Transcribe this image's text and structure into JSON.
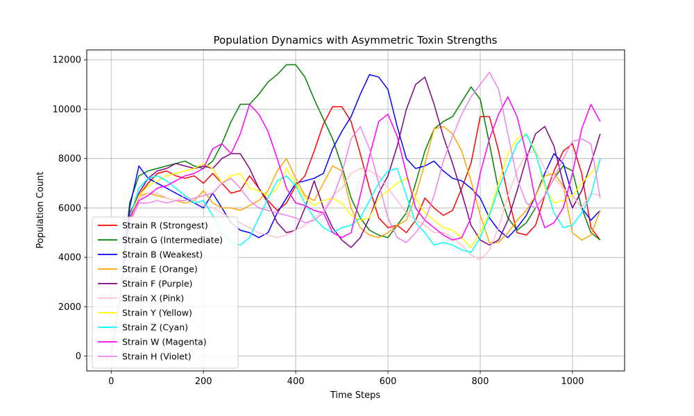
{
  "chart_data": {
    "type": "line",
    "title": "Population Dynamics with Asymmetric Toxin Strengths",
    "xlabel": "Time Steps",
    "ylabel": "Population Count",
    "xlim": [
      -53,
      1113
    ],
    "ylim": [
      -600,
      12400
    ],
    "xticks": [
      0,
      200,
      400,
      600,
      800,
      1000
    ],
    "yticks": [
      0,
      2000,
      4000,
      6000,
      8000,
      10000,
      12000
    ],
    "grid": true,
    "legend_position": "lower-left",
    "series": [
      {
        "name": "Strain R (Strongest)",
        "color": "#ff0000",
        "x": [
          0,
          20,
          40,
          60,
          80,
          100,
          120,
          140,
          160,
          180,
          200,
          220,
          240,
          260,
          280,
          300,
          320,
          340,
          360,
          380,
          400,
          420,
          440,
          460,
          480,
          500,
          520,
          540,
          560,
          580,
          600,
          620,
          640,
          660,
          680,
          700,
          720,
          740,
          760,
          780,
          800,
          820,
          840,
          860,
          880,
          900,
          920,
          940,
          960,
          980,
          1000,
          1020,
          1040,
          1060
        ],
        "y": [
          0,
          2500,
          5800,
          6500,
          7000,
          7400,
          7500,
          7300,
          7200,
          7300,
          7000,
          7400,
          7000,
          6600,
          6700,
          7300,
          6800,
          6300,
          5900,
          6200,
          6900,
          7300,
          8300,
          9400,
          10100,
          10100,
          9500,
          8200,
          6800,
          5600,
          5200,
          5300,
          5000,
          5500,
          6400,
          6000,
          5700,
          5900,
          6800,
          7800,
          9700,
          9700,
          8300,
          6500,
          5000,
          4900,
          5300,
          6500,
          7500,
          8300,
          8600,
          7400,
          5200,
          4700
        ]
      },
      {
        "name": "Strain G (Intermediate)",
        "color": "#008000",
        "x": [
          0,
          20,
          40,
          60,
          80,
          100,
          120,
          140,
          160,
          180,
          200,
          220,
          240,
          260,
          280,
          300,
          320,
          340,
          360,
          380,
          400,
          420,
          440,
          460,
          480,
          500,
          520,
          540,
          560,
          580,
          600,
          620,
          640,
          660,
          680,
          700,
          720,
          740,
          760,
          780,
          800,
          820,
          840,
          860,
          880,
          900,
          920,
          940,
          960,
          980,
          1000,
          1020,
          1040,
          1060
        ],
        "y": [
          0,
          2500,
          6200,
          7300,
          7500,
          7600,
          7700,
          7800,
          7900,
          7700,
          7600,
          7900,
          8600,
          9500,
          10200,
          10200,
          10600,
          11100,
          11400,
          11800,
          11800,
          11300,
          10400,
          9600,
          8800,
          7700,
          6400,
          5600,
          5100,
          4900,
          4800,
          5300,
          5800,
          7000,
          8300,
          9200,
          9500,
          9700,
          10300,
          10900,
          10400,
          8600,
          6700,
          5600,
          5100,
          5400,
          6000,
          6500,
          7200,
          7700,
          7500,
          6000,
          5000,
          4700
        ]
      },
      {
        "name": "Strain B (Weakest)",
        "color": "#0000ff",
        "x": [
          0,
          20,
          40,
          60,
          80,
          100,
          120,
          140,
          160,
          180,
          200,
          220,
          240,
          260,
          280,
          300,
          320,
          340,
          360,
          380,
          400,
          420,
          440,
          460,
          480,
          500,
          520,
          540,
          560,
          580,
          600,
          620,
          640,
          660,
          680,
          700,
          720,
          740,
          760,
          780,
          800,
          820,
          840,
          860,
          880,
          900,
          920,
          940,
          960,
          980,
          1000,
          1020,
          1040,
          1060
        ],
        "y": [
          0,
          2500,
          6000,
          7700,
          7200,
          7000,
          6800,
          6600,
          6400,
          6200,
          6000,
          6600,
          6000,
          5400,
          5100,
          5000,
          4800,
          5000,
          5800,
          6400,
          7000,
          7100,
          7200,
          7400,
          8400,
          9100,
          9700,
          10600,
          11400,
          11300,
          10800,
          9300,
          8000,
          7600,
          7700,
          7900,
          7500,
          7200,
          7100,
          6800,
          6400,
          5600,
          5100,
          4800,
          5200,
          5700,
          6500,
          7400,
          8200,
          7800,
          6500,
          6000,
          5500,
          5900
        ]
      },
      {
        "name": "Strain E (Orange)",
        "color": "#ffa500",
        "x": [
          0,
          20,
          40,
          60,
          80,
          100,
          120,
          140,
          160,
          180,
          200,
          220,
          240,
          260,
          280,
          300,
          320,
          340,
          360,
          380,
          400,
          420,
          440,
          460,
          480,
          500,
          520,
          540,
          560,
          580,
          600,
          620,
          640,
          660,
          680,
          700,
          720,
          740,
          760,
          780,
          800,
          820,
          840,
          860,
          880,
          900,
          920,
          940,
          960,
          980,
          1000,
          1020,
          1040,
          1060
        ],
        "y": [
          0,
          2500,
          5400,
          6500,
          6600,
          6500,
          6400,
          6300,
          6200,
          6300,
          6700,
          6200,
          6000,
          6000,
          5900,
          6100,
          6300,
          6700,
          7500,
          8000,
          7200,
          6500,
          6300,
          7000,
          7700,
          7500,
          6000,
          5200,
          4900,
          4800,
          5000,
          5300,
          5500,
          6500,
          7800,
          9200,
          9300,
          9000,
          8300,
          7100,
          5700,
          4600,
          4600,
          5000,
          5500,
          5900,
          6500,
          7300,
          7400,
          6900,
          5000,
          4700,
          4900,
          5900
        ]
      },
      {
        "name": "Strain F (Purple)",
        "color": "#800080",
        "x": [
          0,
          20,
          40,
          60,
          80,
          100,
          120,
          140,
          160,
          180,
          200,
          220,
          240,
          260,
          280,
          300,
          320,
          340,
          360,
          380,
          400,
          420,
          440,
          460,
          480,
          500,
          520,
          540,
          560,
          580,
          600,
          620,
          640,
          660,
          680,
          700,
          720,
          740,
          760,
          780,
          800,
          820,
          840,
          860,
          880,
          900,
          920,
          940,
          960,
          980,
          1000,
          1020,
          1040,
          1060
        ],
        "y": [
          0,
          2500,
          5600,
          6600,
          7200,
          7500,
          7600,
          7800,
          7700,
          7600,
          7700,
          7600,
          8000,
          8200,
          8200,
          7600,
          6800,
          6200,
          5400,
          5000,
          5100,
          6000,
          7100,
          6000,
          5200,
          4700,
          4400,
          4800,
          5600,
          6600,
          7300,
          8500,
          10000,
          11000,
          11300,
          10200,
          8900,
          7800,
          6600,
          5300,
          4700,
          4500,
          4700,
          5500,
          6700,
          8000,
          9000,
          9300,
          8500,
          7000,
          6000,
          6700,
          7800,
          9000
        ]
      },
      {
        "name": "Strain X (Pink)",
        "color": "#ffc0cb",
        "x": [
          0,
          20,
          40,
          60,
          80,
          100,
          120,
          140,
          160,
          180,
          200,
          220,
          240,
          260,
          280,
          300,
          320,
          340,
          360,
          380,
          400,
          420,
          440,
          460,
          480,
          500,
          520,
          540,
          560,
          580,
          600,
          620,
          640,
          660,
          680,
          700,
          720,
          740,
          760,
          780,
          800,
          820,
          840,
          860,
          880,
          900,
          920,
          940,
          960,
          980,
          1000,
          1020,
          1040,
          1060
        ],
        "y": [
          0,
          2500,
          5600,
          6400,
          6600,
          6600,
          6400,
          6300,
          6500,
          6300,
          6100,
          6000,
          5800,
          5600,
          5400,
          5200,
          5000,
          4900,
          4800,
          4900,
          5100,
          5300,
          5600,
          5900,
          6500,
          6800,
          7400,
          7600,
          7500,
          7300,
          6800,
          6300,
          5800,
          5500,
          5300,
          5000,
          5000,
          4800,
          4500,
          4100,
          3900,
          4300,
          5200,
          6500,
          7500,
          8200,
          8300,
          7600,
          7200,
          6800,
          6500,
          6000,
          6600,
          6500
        ]
      },
      {
        "name": "Strain Y (Yellow)",
        "color": "#ffff00",
        "x": [
          0,
          20,
          40,
          60,
          80,
          100,
          120,
          140,
          160,
          180,
          200,
          220,
          240,
          260,
          280,
          300,
          320,
          340,
          360,
          380,
          400,
          420,
          440,
          460,
          480,
          500,
          520,
          540,
          560,
          580,
          600,
          620,
          640,
          660,
          680,
          700,
          720,
          740,
          760,
          780,
          800,
          820,
          840,
          860,
          880,
          900,
          920,
          940,
          960,
          980,
          1000,
          1020,
          1040,
          1060
        ],
        "y": [
          0,
          2500,
          5600,
          6500,
          6900,
          7100,
          7300,
          7400,
          7500,
          7600,
          7800,
          7600,
          7000,
          7300,
          7400,
          6800,
          6700,
          6500,
          6800,
          7600,
          7000,
          6400,
          6100,
          6300,
          6400,
          6200,
          5700,
          5500,
          5600,
          6400,
          6700,
          7000,
          7200,
          6400,
          5800,
          5500,
          5200,
          5100,
          4800,
          4400,
          5000,
          5800,
          7000,
          8200,
          8800,
          9000,
          8300,
          6800,
          6200,
          6300,
          6500,
          7000,
          7400,
          7900
        ]
      },
      {
        "name": "Strain Z (Cyan)",
        "color": "#00ffff",
        "x": [
          0,
          20,
          40,
          60,
          80,
          100,
          120,
          140,
          160,
          180,
          200,
          220,
          240,
          260,
          280,
          300,
          320,
          340,
          360,
          380,
          400,
          420,
          440,
          460,
          480,
          500,
          520,
          540,
          560,
          580,
          600,
          620,
          640,
          660,
          680,
          700,
          720,
          740,
          760,
          780,
          800,
          820,
          840,
          860,
          880,
          900,
          920,
          940,
          960,
          980,
          1000,
          1020,
          1040,
          1060
        ],
        "y": [
          0,
          2500,
          5600,
          6800,
          7200,
          7300,
          7100,
          6800,
          6500,
          6200,
          6300,
          5700,
          5000,
          4600,
          4500,
          4800,
          5600,
          6400,
          7100,
          7300,
          6900,
          6200,
          5600,
          5200,
          5000,
          5200,
          5300,
          5600,
          6300,
          7000,
          7500,
          7600,
          6500,
          5400,
          5000,
          4500,
          4600,
          4500,
          4300,
          4200,
          4800,
          5700,
          6800,
          7700,
          8600,
          9000,
          8200,
          7000,
          5800,
          5200,
          5300,
          5800,
          6500,
          8000
        ]
      },
      {
        "name": "Strain W (Magenta)",
        "color": "#ff00ff",
        "x": [
          0,
          20,
          40,
          60,
          80,
          100,
          120,
          140,
          160,
          180,
          200,
          220,
          240,
          260,
          280,
          300,
          320,
          340,
          360,
          380,
          400,
          420,
          440,
          460,
          480,
          500,
          520,
          540,
          560,
          580,
          600,
          620,
          640,
          660,
          680,
          700,
          720,
          740,
          760,
          780,
          800,
          820,
          840,
          860,
          880,
          900,
          920,
          940,
          960,
          980,
          1000,
          1020,
          1040,
          1060
        ],
        "y": [
          0,
          2500,
          5600,
          6300,
          6500,
          6800,
          6900,
          7100,
          7300,
          7400,
          7600,
          8400,
          8600,
          8200,
          9000,
          10200,
          9800,
          9100,
          8000,
          6800,
          6200,
          6100,
          5900,
          5800,
          5000,
          4800,
          5000,
          6500,
          8100,
          9500,
          9800,
          8900,
          7400,
          6000,
          5500,
          5200,
          4900,
          4700,
          4800,
          5600,
          7400,
          8800,
          9800,
          10500,
          9700,
          8200,
          6300,
          5200,
          5400,
          6000,
          7400,
          9200,
          10200,
          9500
        ]
      },
      {
        "name": "Strain H (Violet)",
        "color": "#ee82ee",
        "x": [
          0,
          20,
          40,
          60,
          80,
          100,
          120,
          140,
          160,
          180,
          200,
          220,
          240,
          260,
          280,
          300,
          320,
          340,
          360,
          380,
          400,
          420,
          440,
          460,
          480,
          500,
          520,
          540,
          560,
          580,
          600,
          620,
          640,
          660,
          680,
          700,
          720,
          740,
          760,
          780,
          800,
          820,
          840,
          860,
          880,
          900,
          920,
          940,
          960,
          980,
          1000,
          1020,
          1040,
          1060
        ],
        "y": [
          0,
          2500,
          5400,
          6200,
          6200,
          6300,
          6200,
          6300,
          6300,
          6400,
          6500,
          6600,
          7000,
          7200,
          6800,
          6300,
          6000,
          5900,
          5800,
          5700,
          5600,
          5400,
          5500,
          5800,
          6400,
          7400,
          8800,
          9300,
          8400,
          7000,
          5600,
          4800,
          4600,
          5000,
          5500,
          6500,
          7900,
          8900,
          9800,
          10500,
          11000,
          11500,
          10800,
          9000,
          7200,
          6200,
          6000,
          6500,
          7200,
          8000,
          8700,
          8800,
          8600,
          6400
        ]
      }
    ]
  }
}
